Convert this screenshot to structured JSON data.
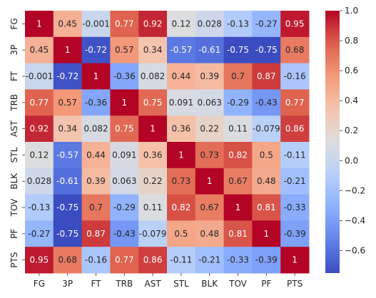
{
  "chart_data": {
    "type": "heatmap",
    "title": "",
    "xlabel": "",
    "ylabel": "",
    "x_categories": [
      "FG",
      "3P",
      "FT",
      "TRB",
      "AST",
      "STL",
      "BLK",
      "TOV",
      "PF",
      "PTS"
    ],
    "y_categories": [
      "FG",
      "3P",
      "FT",
      "TRB",
      "AST",
      "STL",
      "BLK",
      "TOV",
      "PF",
      "PTS"
    ],
    "values": [
      [
        1,
        0.45,
        -0.001,
        0.77,
        0.92,
        0.12,
        0.028,
        -0.13,
        -0.27,
        0.95
      ],
      [
        0.45,
        1,
        -0.72,
        0.57,
        0.34,
        -0.57,
        -0.61,
        -0.75,
        -0.75,
        0.68
      ],
      [
        -0.001,
        -0.72,
        1,
        -0.36,
        0.082,
        0.44,
        0.39,
        0.7,
        0.87,
        -0.16
      ],
      [
        0.77,
        0.57,
        -0.36,
        1,
        0.75,
        0.091,
        0.063,
        -0.29,
        -0.43,
        0.77
      ],
      [
        0.92,
        0.34,
        0.082,
        0.75,
        1,
        0.36,
        0.22,
        0.11,
        -0.079,
        0.86
      ],
      [
        0.12,
        -0.57,
        0.44,
        0.091,
        0.36,
        1,
        0.73,
        0.82,
        0.5,
        -0.11
      ],
      [
        0.028,
        -0.61,
        0.39,
        0.063,
        0.22,
        0.73,
        1,
        0.67,
        0.48,
        -0.21
      ],
      [
        -0.13,
        -0.75,
        0.7,
        -0.29,
        0.11,
        0.82,
        0.67,
        1,
        0.81,
        -0.33
      ],
      [
        -0.27,
        -0.75,
        0.87,
        -0.43,
        -0.079,
        0.5,
        0.48,
        0.81,
        1,
        -0.39
      ],
      [
        0.95,
        0.68,
        -0.16,
        0.77,
        0.86,
        -0.11,
        -0.21,
        -0.33,
        -0.39,
        1
      ]
    ],
    "colormap": "coolwarm",
    "color_range": [
      -0.75,
      1
    ],
    "colorbar": {
      "ticks": [
        -0.6,
        -0.4,
        -0.2,
        0,
        0.2,
        0.4,
        0.6,
        0.8,
        1
      ],
      "tick_labels": [
        "−0.6",
        "−0.4",
        "−0.2",
        "0.0",
        "0.2",
        "0.4",
        "0.6",
        "0.8",
        "1.0"
      ]
    },
    "grid": false,
    "legend": "colorbar-right"
  }
}
